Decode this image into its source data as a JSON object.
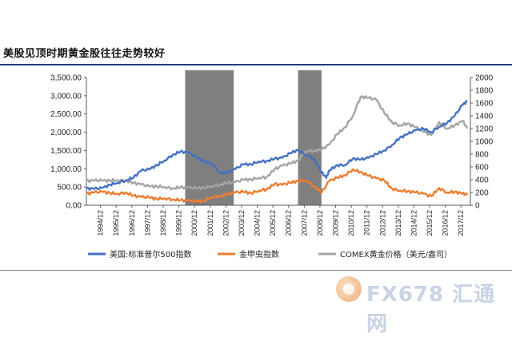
{
  "title": "美股见顶时期黄金股往往走势较好",
  "watermark": "FX678 汇通网",
  "chart_data": {
    "type": "line",
    "left_axis": {
      "ticks": [
        "0.00",
        "500.00",
        "1,000.00",
        "1,500.00",
        "2,000.00",
        "2,500.00",
        "3,000.00",
        "3,500.00"
      ],
      "min": 0,
      "max": 3500
    },
    "right_axis": {
      "ticks": [
        "0",
        "200",
        "400",
        "600",
        "800",
        "1000",
        "1200",
        "1400",
        "1600",
        "1800",
        "2000"
      ],
      "min": 0,
      "max": 2000
    },
    "x_range": [
      1994.0,
      2018.5
    ],
    "x_ticks": [
      "1994/12",
      "1995/12",
      "1996/12",
      "1997/12",
      "1998/12",
      "1999/12",
      "2000/12",
      "2001/12",
      "2002/12",
      "2003/12",
      "2004/12",
      "2005/12",
      "2006/12",
      "2007/12",
      "2008/12",
      "2009/12",
      "2010/12",
      "2011/12",
      "2012/12",
      "2013/12",
      "2014/12",
      "2015/12",
      "2016/12",
      "2017/12"
    ],
    "shaded_periods": [
      [
        2000.3,
        2003.4
      ],
      [
        2007.5,
        2009.0
      ]
    ],
    "shade_color": "#7f7f7f",
    "series": [
      {
        "name": "美国:标准普尔500指数",
        "axis": "left",
        "color": "#4472c4",
        "x": [
          1994.0,
          1994.5,
          1995.0,
          1995.5,
          1996.0,
          1996.5,
          1997.0,
          1997.5,
          1998.0,
          1998.5,
          1999.0,
          1999.5,
          2000.0,
          2000.5,
          2001.0,
          2001.5,
          2002.0,
          2002.5,
          2003.0,
          2003.5,
          2004.0,
          2004.5,
          2005.0,
          2005.5,
          2006.0,
          2006.5,
          2007.0,
          2007.5,
          2008.0,
          2008.5,
          2009.0,
          2009.3,
          2009.5,
          2010.0,
          2010.5,
          2011.0,
          2011.5,
          2012.0,
          2012.5,
          2013.0,
          2013.5,
          2014.0,
          2014.5,
          2015.0,
          2015.5,
          2016.0,
          2016.5,
          2017.0,
          2017.5,
          2018.0,
          2018.3
        ],
        "y": [
          460,
          450,
          470,
          560,
          620,
          680,
          760,
          950,
          980,
          1100,
          1230,
          1380,
          1470,
          1440,
          1320,
          1200,
          1150,
          900,
          880,
          990,
          1120,
          1120,
          1200,
          1210,
          1270,
          1300,
          1420,
          1520,
          1380,
          1280,
          900,
          750,
          950,
          1100,
          1100,
          1280,
          1250,
          1300,
          1400,
          1500,
          1650,
          1850,
          1950,
          2050,
          2100,
          2000,
          2150,
          2250,
          2450,
          2750,
          2850
        ]
      },
      {
        "name": "金甲虫指数",
        "axis": "right",
        "color": "#ed7d31",
        "x": [
          1994.0,
          1994.5,
          1995.0,
          1995.5,
          1996.0,
          1996.5,
          1997.0,
          1997.5,
          1998.0,
          1998.5,
          1999.0,
          1999.5,
          2000.0,
          2000.5,
          2001.0,
          2001.5,
          2002.0,
          2002.5,
          2003.0,
          2003.5,
          2004.0,
          2004.5,
          2005.0,
          2005.5,
          2006.0,
          2006.5,
          2007.0,
          2007.5,
          2008.0,
          2008.5,
          2009.0,
          2009.5,
          2010.0,
          2010.5,
          2011.0,
          2011.5,
          2012.0,
          2012.5,
          2013.0,
          2013.5,
          2014.0,
          2014.5,
          2015.0,
          2015.5,
          2016.0,
          2016.5,
          2017.0,
          2017.5,
          2018.0,
          2018.3
        ],
        "y": [
          180,
          200,
          210,
          190,
          180,
          200,
          150,
          130,
          120,
          100,
          110,
          90,
          80,
          70,
          60,
          70,
          130,
          140,
          170,
          200,
          210,
          190,
          230,
          250,
          330,
          320,
          350,
          380,
          390,
          300,
          200,
          380,
          430,
          470,
          560,
          520,
          460,
          420,
          390,
          260,
          230,
          220,
          200,
          180,
          140,
          270,
          200,
          210,
          180,
          160
        ]
      },
      {
        "name": "COMEX黄金价格（美元/盎司）",
        "axis": "right",
        "color": "#a5a5a5",
        "x": [
          1994.0,
          1994.5,
          1995.0,
          1995.5,
          1996.0,
          1996.5,
          1997.0,
          1997.5,
          1998.0,
          1998.5,
          1999.0,
          1999.5,
          2000.0,
          2000.5,
          2001.0,
          2001.5,
          2002.0,
          2002.5,
          2003.0,
          2003.5,
          2004.0,
          2004.5,
          2005.0,
          2005.5,
          2006.0,
          2006.5,
          2007.0,
          2007.5,
          2008.0,
          2008.5,
          2009.0,
          2009.5,
          2010.0,
          2010.5,
          2011.0,
          2011.5,
          2012.0,
          2012.5,
          2013.0,
          2013.5,
          2014.0,
          2014.5,
          2015.0,
          2015.5,
          2016.0,
          2016.5,
          2017.0,
          2017.5,
          2018.0,
          2018.3
        ],
        "y": [
          380,
          385,
          385,
          385,
          395,
          385,
          350,
          325,
          295,
          295,
          285,
          265,
          280,
          275,
          265,
          275,
          300,
          320,
          350,
          360,
          400,
          405,
          430,
          440,
          560,
          620,
          650,
          700,
          850,
          850,
          870,
          950,
          1110,
          1220,
          1400,
          1700,
          1680,
          1650,
          1450,
          1300,
          1250,
          1280,
          1220,
          1150,
          1100,
          1300,
          1200,
          1250,
          1320,
          1200
        ]
      }
    ]
  }
}
